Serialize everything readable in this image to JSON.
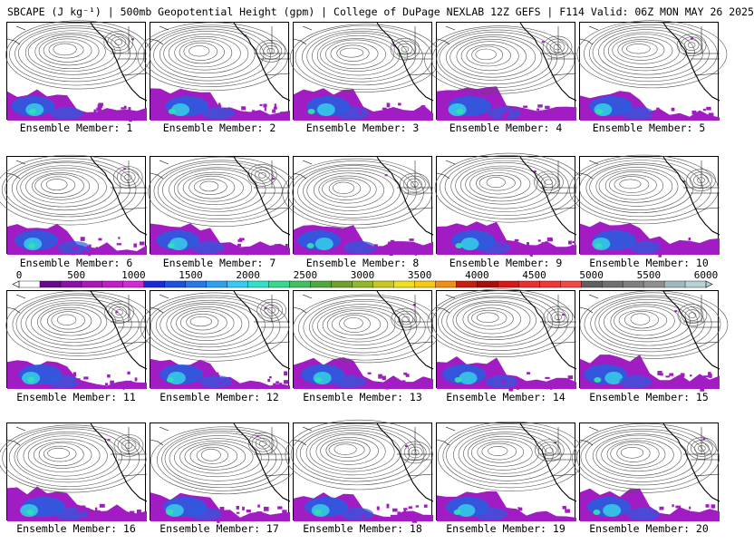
{
  "title": "SBCAPE (J kg⁻¹) | 500mb Geopotential Height (gpm) | College of DuPage NEXLAB 12Z GEFS | F114 Valid: 06Z MON MAY 26 2025",
  "members": [
    "Ensemble Member: 1",
    "Ensemble Member: 2",
    "Ensemble Member: 3",
    "Ensemble Member: 4",
    "Ensemble Member: 5",
    "Ensemble Member: 6",
    "Ensemble Member: 7",
    "Ensemble Member: 8",
    "Ensemble Member: 9",
    "Ensemble Member: 10",
    "Ensemble Member: 11",
    "Ensemble Member: 12",
    "Ensemble Member: 13",
    "Ensemble Member: 14",
    "Ensemble Member: 15",
    "Ensemble Member: 16",
    "Ensemble Member: 17",
    "Ensemble Member: 18",
    "Ensemble Member: 19",
    "Ensemble Member: 20"
  ],
  "colorbar": {
    "ticks": [
      "0",
      "500",
      "1000",
      "1500",
      "2000",
      "2500",
      "3000",
      "3500",
      "4000",
      "4500",
      "5000",
      "5500",
      "6000"
    ],
    "colors": [
      "#ffffff",
      "#6a0a8a",
      "#8a12a8",
      "#a81ab8",
      "#c21ec8",
      "#d22ad6",
      "#1a2ad8",
      "#2050e0",
      "#2878e8",
      "#30a0ee",
      "#38c8f0",
      "#30e0c8",
      "#38d890",
      "#40c060",
      "#50a840",
      "#70a030",
      "#90b828",
      "#c8c820",
      "#f0e020",
      "#f8c818",
      "#f09018",
      "#c82010",
      "#a81010",
      "#d81818",
      "#e83030",
      "#f03838",
      "#f04848",
      "#606060",
      "#707070",
      "#808080",
      "#909090",
      "#a0b8c0",
      "#b8d0d8"
    ]
  },
  "map_colors": {
    "contour": "#555555",
    "coast": "#000000",
    "cape_purple": "#a21cc4",
    "cape_blue": "#2a5ce0",
    "cape_cyan": "#35c8e8",
    "cape_teal": "#30e0b0"
  }
}
